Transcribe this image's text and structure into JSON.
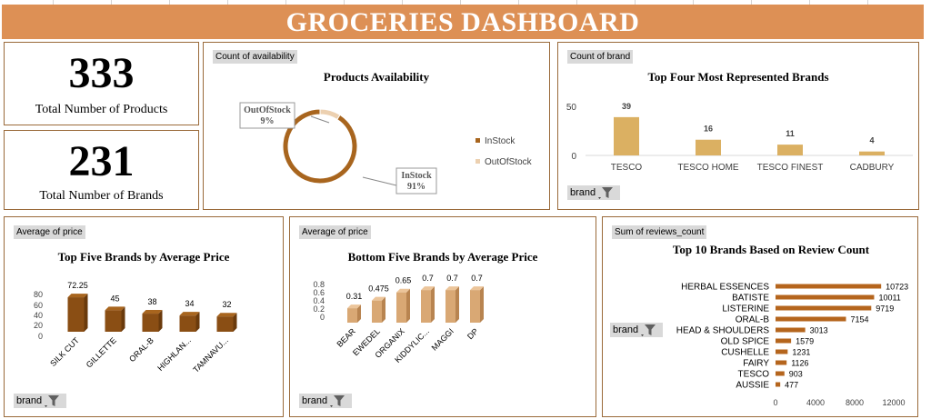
{
  "title": "GROCERIES DASHBOARD",
  "colors": {
    "banner": "#dd9055",
    "brown_dark": "#a8651e",
    "tan": "#dbb062",
    "beige": "#e8c8a6",
    "panel_border": "#9a6a3a"
  },
  "kpis": {
    "total_products": {
      "value": "333",
      "label": "Total Number of Products"
    },
    "total_brands": {
      "value": "231",
      "label": "Total Number of Brands"
    }
  },
  "filter_label": "brand",
  "charts": {
    "availability": {
      "field": "Count of availability",
      "title": "Products Availability",
      "slice_labels": [
        {
          "name": "OutOfStock",
          "pct": "9%"
        },
        {
          "name": "InStock",
          "pct": "91%"
        }
      ],
      "legend": [
        "InStock",
        "OutOfStock"
      ]
    },
    "top_brands": {
      "field": "Count of brand",
      "title": "Top Four Most Represented Brands",
      "y_ticks": [
        "50",
        "0"
      ]
    },
    "top_price": {
      "field": "Average of price",
      "title": "Top Five Brands by Average Price",
      "y_ticks": [
        "80",
        "60",
        "40",
        "20",
        "0"
      ]
    },
    "bottom_price": {
      "field": "Average of price",
      "title": "Bottom Five Brands by Average Price",
      "y_ticks": [
        "0.8",
        "0.6",
        "0.4",
        "0.2",
        "0"
      ]
    },
    "reviews": {
      "field": "Sum of reviews_count",
      "title": "Top 10 Brands Based on Review Count",
      "x_ticks": [
        "0",
        "4000",
        "8000",
        "12000"
      ]
    }
  },
  "chart_data": [
    {
      "type": "pie",
      "title": "Products Availability",
      "categories": [
        "InStock",
        "OutOfStock"
      ],
      "values": [
        91,
        9
      ],
      "colors": [
        "#a8651e",
        "#ecd0b0"
      ]
    },
    {
      "type": "bar",
      "title": "Top Four Most Represented Brands",
      "categories": [
        "TESCO",
        "TESCO HOME",
        "TESCO FINEST",
        "CADBURY"
      ],
      "values": [
        39,
        16,
        11,
        4
      ],
      "value_labels": [
        "39",
        "16",
        "11",
        "4"
      ],
      "ylim": [
        0,
        50
      ]
    },
    {
      "type": "bar",
      "title": "Top Five Brands by Average Price",
      "categories": [
        "SILK CUT",
        "GILLETTE",
        "ORAL-B",
        "HIGHLAN...",
        "TAMNAVU..."
      ],
      "values": [
        72.25,
        45,
        38,
        34,
        32
      ],
      "value_labels": [
        "72.25",
        "45",
        "38",
        "34",
        "32"
      ],
      "ylim": [
        0,
        80
      ]
    },
    {
      "type": "bar",
      "title": "Bottom Five Brands by Average Price",
      "categories": [
        "BEAR",
        "EWEDEL",
        "ORGANIX",
        "KIDDYLIC...",
        "MAGGI",
        "DP"
      ],
      "values": [
        0.31,
        0.475,
        0.65,
        0.7,
        0.7,
        0.7
      ],
      "value_labels": [
        "0.31",
        "0.475",
        "0.65",
        "0.7",
        "0.7",
        "0.7"
      ],
      "ylim": [
        0,
        0.8
      ]
    },
    {
      "type": "bar",
      "orientation": "horizontal",
      "title": "Top 10 Brands Based on Review Count",
      "categories": [
        "HERBAL ESSENCES",
        "BATISTE",
        "LISTERINE",
        "ORAL-B",
        "HEAD & SHOULDERS",
        "OLD SPICE",
        "CUSHELLE",
        "FAIRY",
        "TESCO",
        "AUSSIE"
      ],
      "values": [
        10723,
        10011,
        9719,
        7154,
        3013,
        1579,
        1231,
        1126,
        903,
        477
      ],
      "value_labels": [
        "10723",
        "10011",
        "9719",
        "7154",
        "3013",
        "1579",
        "1231",
        "1126",
        "903",
        "477"
      ],
      "xlim": [
        0,
        12000
      ]
    }
  ]
}
